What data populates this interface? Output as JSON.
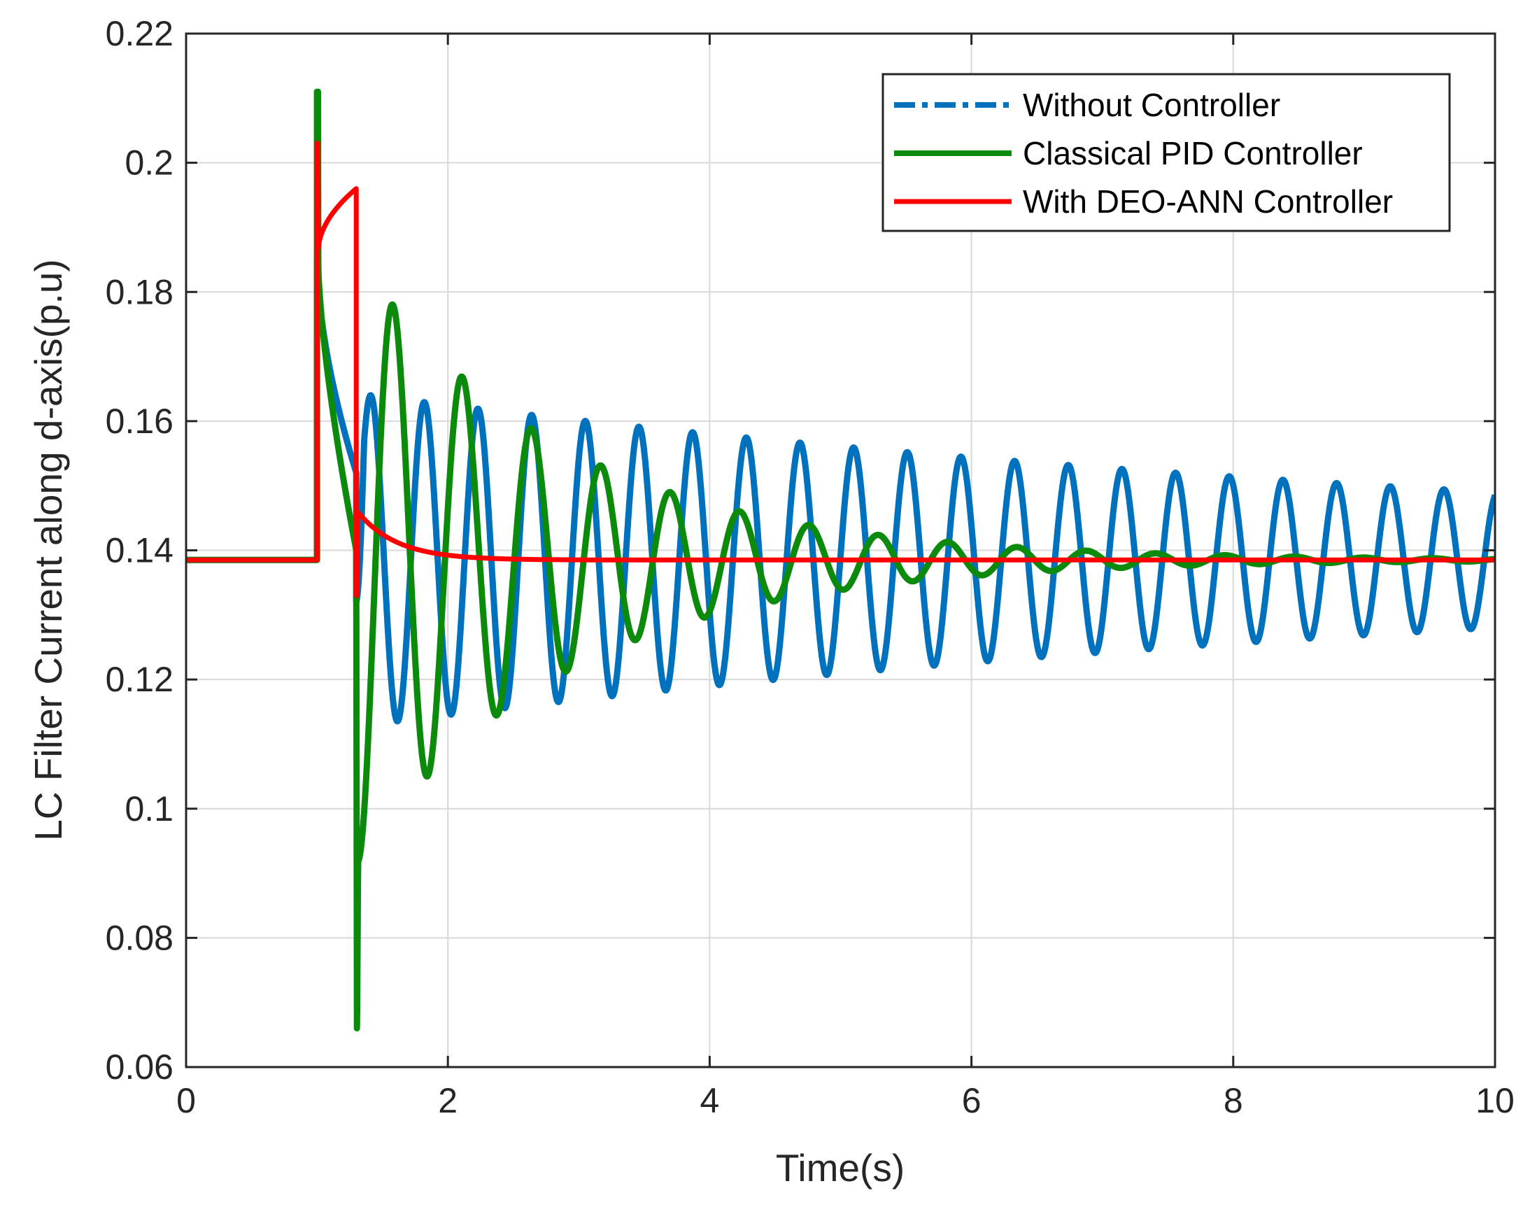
{
  "chart_data": {
    "type": "line",
    "title": "",
    "xlabel": "Time(s)",
    "ylabel": "LC Filter Current along d-axis(p.u)",
    "xlim": [
      0,
      10
    ],
    "ylim": [
      0.06,
      0.22
    ],
    "xticks": [
      0,
      2,
      4,
      6,
      8,
      10
    ],
    "xtick_labels": [
      "0",
      "2",
      "4",
      "6",
      "8",
      "10"
    ],
    "yticks": [
      0.06,
      0.08,
      0.1,
      0.12,
      0.14,
      0.16,
      0.18,
      0.2,
      0.22
    ],
    "ytick_labels": [
      "0.06",
      "0.08",
      "0.1",
      "0.12",
      "0.14",
      "0.16",
      "0.18",
      "0.2",
      "0.22"
    ],
    "grid": true,
    "legend_position": "top-right",
    "series": [
      {
        "name": "Without Controller",
        "color": "#0072BD",
        "style": "dash-dot",
        "model": {
          "baseline": 0.1385,
          "step_time": 1.0,
          "initial_value": 0.185,
          "disturbance_time": 1.3,
          "disturbance_value": 0.132,
          "offset": 0.1385,
          "amplitude_initial": 0.0255,
          "amplitude_final": 0.0105,
          "period": 0.41,
          "first_peak_time": 1.41
        }
      },
      {
        "name": "Classical PID Controller",
        "color": "#0B8A0B",
        "style": "solid",
        "model": {
          "baseline": 0.1385,
          "step_time": 1.0,
          "spike_value": 0.211,
          "decay_end_value": 0.14,
          "disturbance_time": 1.3,
          "disturbance_value": 0.066,
          "offset": 0.1385,
          "first_peak_time": 1.58,
          "first_peak_value": 0.178,
          "period": 0.53,
          "decay_tau": 1.6
        }
      },
      {
        "name": "With DEO-ANN Controller",
        "color": "#FF0000",
        "style": "solid",
        "model": {
          "baseline": 0.1385,
          "step_time": 1.0,
          "spike_value": 0.203,
          "rise_start_value": 0.186,
          "rise_end_value": 0.196,
          "disturbance_time": 1.3,
          "disturbance_value": 0.133,
          "post_disturbance_value": 0.146,
          "settle_value": 0.1385,
          "settle_tau": 0.3
        }
      }
    ]
  }
}
